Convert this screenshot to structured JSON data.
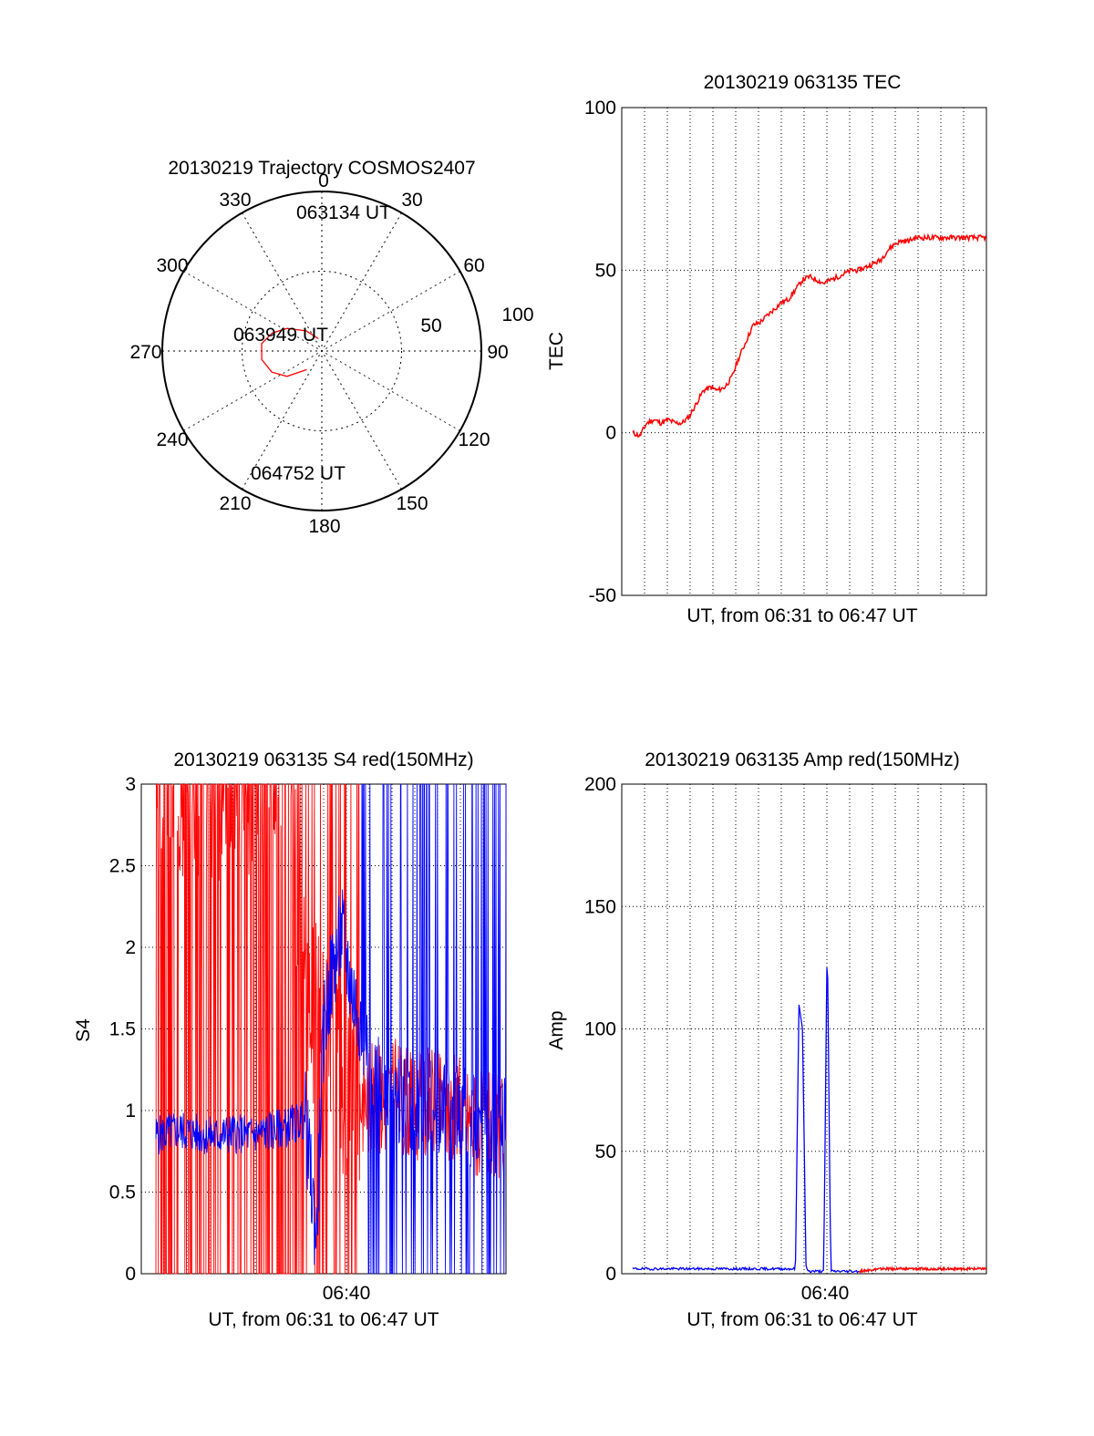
{
  "chart_data": [
    {
      "type": "polar",
      "title": "20130219 Trajectory COSMOS2407",
      "angle_labels": [
        "0",
        "30",
        "60",
        "90",
        "120",
        "150",
        "180",
        "210",
        "240",
        "270",
        "300",
        "330"
      ],
      "radius_labels": [
        "50",
        "100"
      ],
      "rlim": [
        0,
        100
      ],
      "grid": true,
      "series": [
        {
          "color": "#ff0000",
          "points": [
            {
              "az": 345,
              "el": 8
            },
            {
              "az": 322,
              "el": 16
            },
            {
              "az": 303,
              "el": 26
            },
            {
              "az": 290,
              "el": 33
            },
            {
              "az": 277,
              "el": 38
            },
            {
              "az": 262,
              "el": 38
            },
            {
              "az": 247,
              "el": 34
            },
            {
              "az": 234,
              "el": 27
            },
            {
              "az": 219,
              "el": 15
            }
          ]
        }
      ],
      "annotations": [
        "063134 UT",
        "063949 UT",
        "064752 UT"
      ]
    },
    {
      "type": "line",
      "title": "20130219 063135 TEC",
      "xlabel": "UT, from 06:31 to 06:47 UT",
      "ylabel": "TEC",
      "ylim": [
        -50,
        100
      ],
      "yticks": [
        "-50",
        "0",
        "50",
        "100"
      ],
      "grid": true,
      "series": [
        {
          "color": "#ff0000",
          "x": [
            0.0,
            0.02,
            0.04,
            0.06,
            0.08,
            0.1,
            0.12,
            0.14,
            0.16,
            0.18,
            0.2,
            0.22,
            0.24,
            0.26,
            0.28,
            0.3,
            0.32,
            0.34,
            0.36,
            0.38,
            0.4,
            0.42,
            0.44,
            0.46,
            0.48,
            0.5,
            0.52,
            0.54,
            0.56,
            0.58,
            0.6,
            0.62,
            0.64,
            0.66,
            0.68,
            0.7,
            0.72,
            0.74,
            0.76,
            0.78,
            0.8,
            0.82,
            0.84,
            0.86,
            0.88,
            0.9,
            0.92,
            0.94,
            0.96,
            0.98,
            1.0
          ],
          "y": [
            0,
            -1,
            3,
            4,
            3,
            4,
            3,
            3,
            5,
            9,
            13,
            14,
            13,
            14,
            17,
            23,
            28,
            33,
            34,
            36,
            38,
            40,
            41,
            44,
            47,
            48,
            47,
            46,
            47,
            48,
            49,
            50,
            50,
            51,
            52,
            53,
            56,
            58,
            59,
            59,
            60,
            60,
            60,
            60,
            60,
            60,
            60,
            60,
            60,
            60,
            60
          ]
        }
      ]
    },
    {
      "type": "line",
      "title": "20130219 063135 S4 red(150MHz)",
      "xlabel": "UT, from 06:31 to 06:47 UT",
      "ylabel": "S4",
      "ylim": [
        0,
        3
      ],
      "yticks": [
        "0",
        "0.5",
        "1",
        "1.5",
        "2",
        "2.5",
        "3"
      ],
      "xticks": [
        "06:40"
      ],
      "grid": true,
      "series": [
        {
          "color": "#0000ff",
          "x": [
            0.0,
            0.05,
            0.1,
            0.15,
            0.2,
            0.25,
            0.3,
            0.35,
            0.4,
            0.45,
            0.48,
            0.5,
            0.52,
            0.55,
            0.58,
            0.6,
            0.62,
            0.65,
            0.7,
            0.75,
            0.8,
            0.85,
            0.9,
            0.95,
            1.0
          ],
          "y": [
            0.85,
            0.85,
            0.88,
            0.86,
            0.84,
            0.86,
            0.85,
            0.87,
            0.9,
            0.95,
            0.2,
            1.5,
            1.8,
            2.1,
            1.7,
            1.6,
            1.3,
            1.2,
            1.1,
            1.0,
            1.05,
            1.0,
            0.95,
            0.9,
            0.9
          ]
        },
        {
          "color": "#ff0000",
          "x": [
            0.0,
            0.1,
            0.2,
            0.3,
            0.4,
            0.45,
            0.5,
            0.55,
            0.6,
            0.65,
            0.7,
            0.75,
            0.8,
            0.85,
            0.9,
            0.95,
            1.0
          ],
          "y": [
            3.0,
            3.0,
            3.0,
            3.0,
            3.0,
            1.8,
            1.4,
            1.2,
            1.1,
            1.05,
            1.1,
            1.0,
            1.05,
            1.0,
            0.95,
            0.9,
            0.85
          ]
        }
      ]
    },
    {
      "type": "line",
      "title": "20130219 063135 Amp red(150MHz)",
      "xlabel": "UT, from 06:31 to 06:47 UT",
      "ylabel": "Amp",
      "ylim": [
        0,
        200
      ],
      "yticks": [
        "0",
        "50",
        "100",
        "150",
        "200"
      ],
      "xticks": [
        "06:40"
      ],
      "grid": true,
      "series": [
        {
          "color": "#0000ff",
          "x": [
            0.0,
            0.1,
            0.2,
            0.3,
            0.4,
            0.46,
            0.47,
            0.48,
            0.49,
            0.5,
            0.52,
            0.54,
            0.55,
            0.56,
            0.58,
            0.6,
            0.62,
            0.64
          ],
          "y": [
            2,
            2,
            2,
            2,
            2,
            2,
            110,
            100,
            2,
            1,
            1,
            1,
            140,
            1,
            1,
            1,
            1,
            1
          ]
        },
        {
          "color": "#ff0000",
          "x": [
            0.64,
            0.7,
            0.8,
            0.9,
            1.0
          ],
          "y": [
            1,
            2,
            2,
            2,
            2
          ]
        }
      ]
    }
  ]
}
